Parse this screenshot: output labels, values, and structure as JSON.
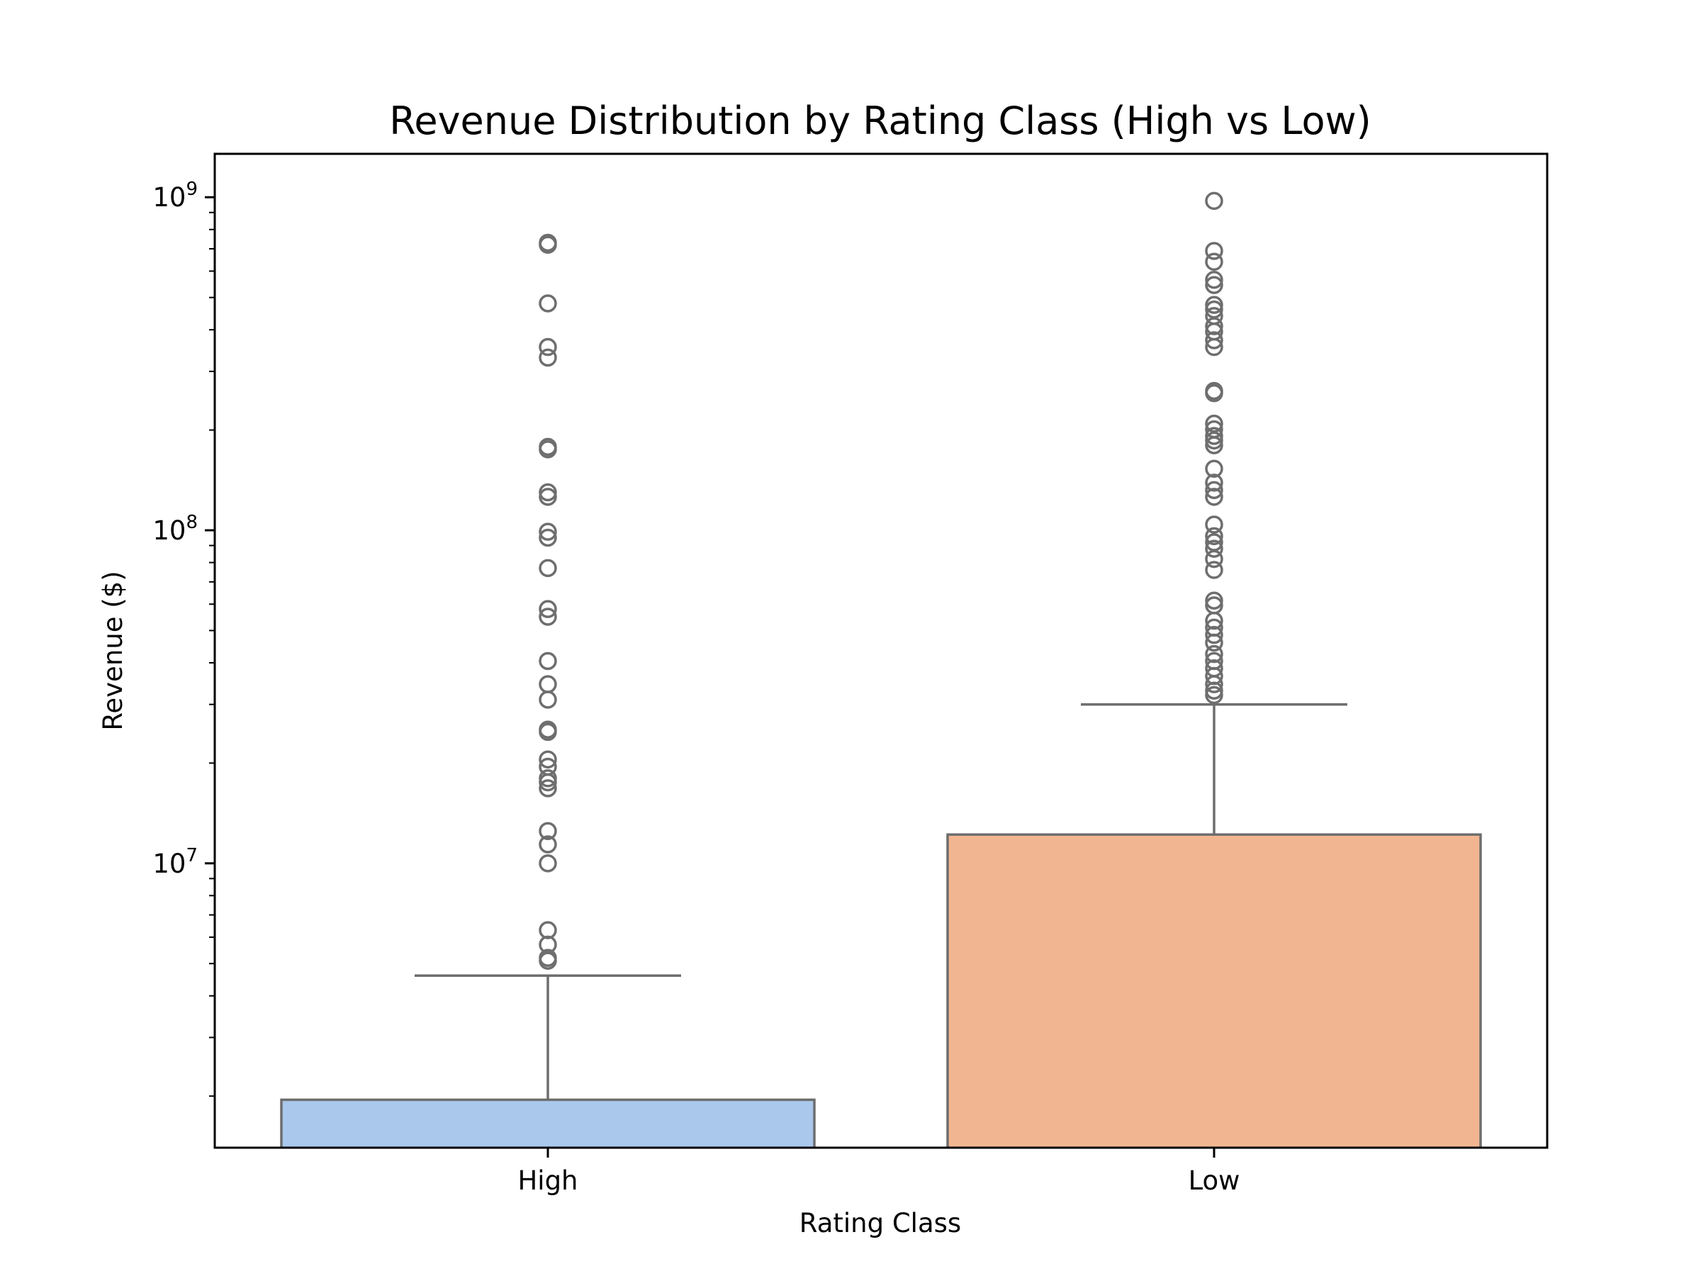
{
  "chart_data": {
    "type": "box",
    "title": "Revenue Distribution by Rating Class (High vs Low)",
    "xlabel": "Rating Class",
    "ylabel": "Revenue ($)",
    "yscale": "log",
    "ylim": [
      1400000,
      1350000000
    ],
    "y_ticks": [
      {
        "value": 10000000,
        "base": "10",
        "exp": "7"
      },
      {
        "value": 100000000,
        "base": "10",
        "exp": "8"
      },
      {
        "value": 1000000000,
        "base": "10",
        "exp": "9"
      }
    ],
    "grid": false,
    "legend": "none",
    "categories": [
      "High",
      "Low"
    ],
    "colors": {
      "High": "#a9c8ec",
      "Low": "#f1b691",
      "outline": "#6e6e6e",
      "flier": "#6e6e6e"
    },
    "boxes": [
      {
        "category": "High",
        "q3": 1950000,
        "whisker_high": 4600000,
        "outliers": [
          5100000,
          5200000,
          5700000,
          6300000,
          10000000,
          11400000,
          12500000,
          16800000,
          17500000,
          18000000,
          19500000,
          20500000,
          24800000,
          25200000,
          31000000,
          34500000,
          40500000,
          55000000,
          58000000,
          77000000,
          95000000,
          99000000,
          126000000,
          130000000,
          175000000,
          178000000,
          330000000,
          355000000,
          480000000,
          720000000,
          730000000
        ]
      },
      {
        "category": "Low",
        "q3": 12200000,
        "whisker_high": 30000000,
        "outliers": [
          32000000,
          33000000,
          34500000,
          36500000,
          38500000,
          40500000,
          42500000,
          46000000,
          48500000,
          51000000,
          53500000,
          59500000,
          61500000,
          76000000,
          82000000,
          88000000,
          92000000,
          96000000,
          104000000,
          126000000,
          132000000,
          139000000,
          153000000,
          180000000,
          186000000,
          192000000,
          201000000,
          209000000,
          258000000,
          262000000,
          355000000,
          372000000,
          395000000,
          410000000,
          440000000,
          460000000,
          475000000,
          545000000,
          565000000,
          640000000,
          690000000,
          975000000
        ]
      }
    ]
  }
}
